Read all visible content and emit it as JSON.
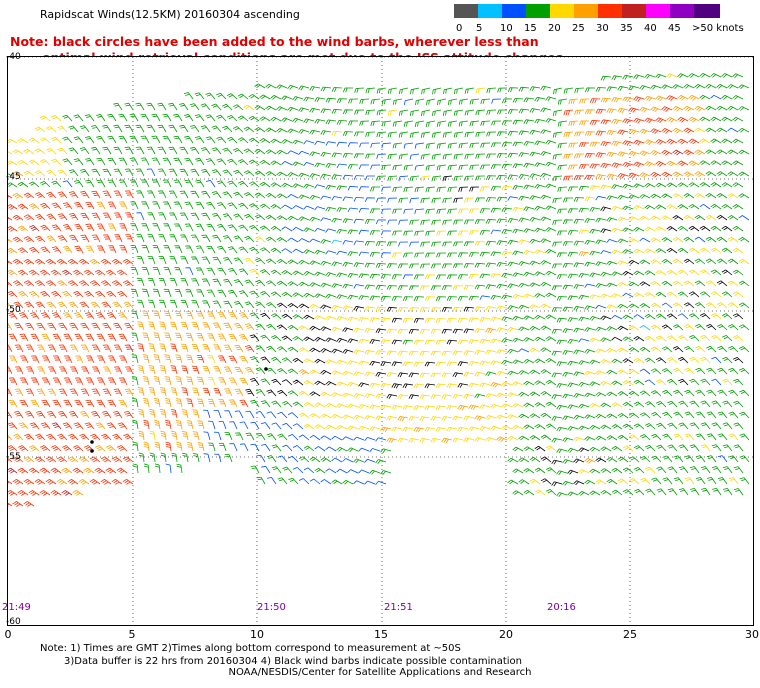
{
  "title": "Rapidscat Winds(12.5KM) 20160304 ascending",
  "note_line1": "Note: black circles have been added to the wind barbs, wherever less than",
  "note_line2": "optimal wind retrieval conditions are met due to the ISS attitude changes.",
  "legend": {
    "labels": [
      "0",
      "5",
      "10",
      "15",
      "20",
      "25",
      "30",
      "35",
      "40",
      "45",
      ">50 knots"
    ],
    "colors": [
      "#555555",
      "#00c0ff",
      "#0050ff",
      "#00a000",
      "#ffd800",
      "#ffa000",
      "#ff3000",
      "#c02020",
      "#ff00ff",
      "#9000c0",
      "#500080"
    ]
  },
  "x_ticks": [
    "0",
    "5",
    "10",
    "15",
    "20",
    "25",
    "30"
  ],
  "y_ticks": [
    "-40",
    "-45",
    "-50",
    "-55",
    "-60"
  ],
  "times": [
    "21:49",
    "21:50",
    "21:51",
    "20:16"
  ],
  "footnote_line1": "Note: 1) Times are GMT 2)Times along bottom correspond to measurement at ~50S",
  "footnote_line2": "3)Data buffer is 22 hrs from 20160304 4) Black wind barbs indicate possible contamination",
  "credit": "NOAA/NESDIS/Center for Satellite Applications and Research"
}
